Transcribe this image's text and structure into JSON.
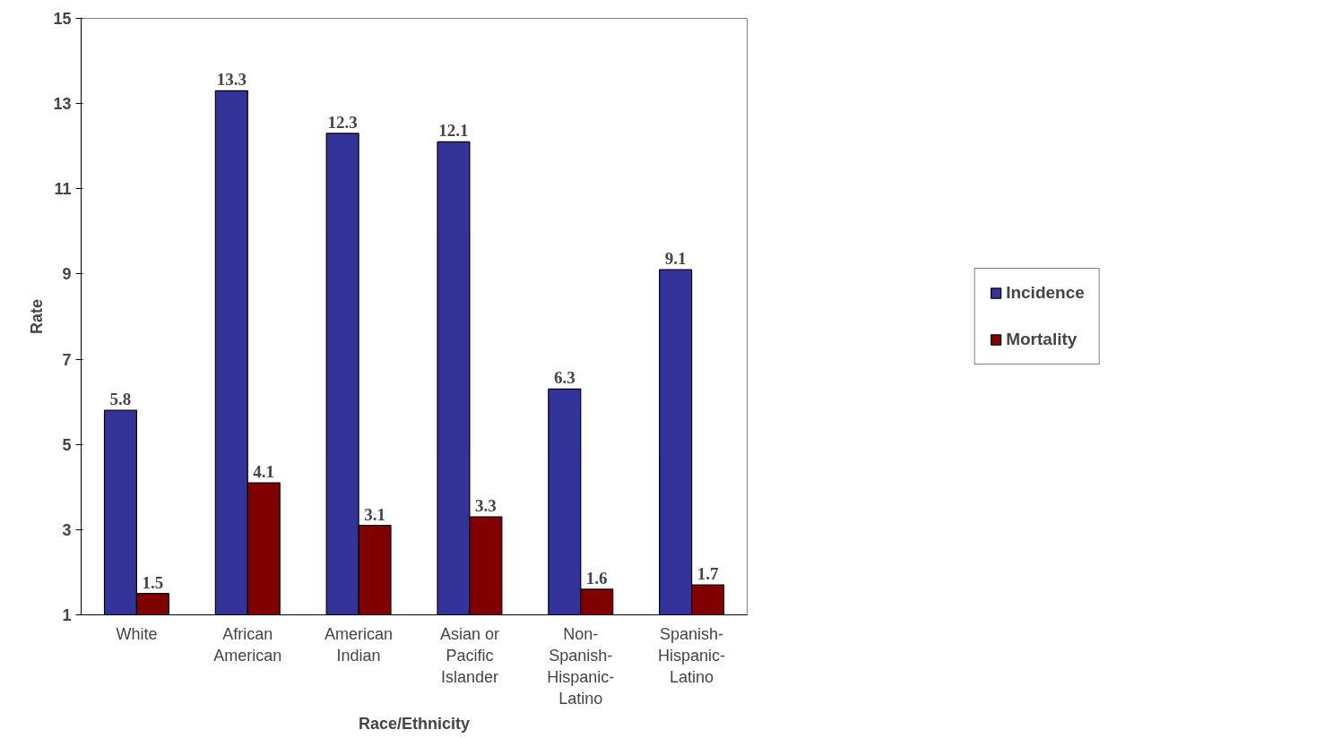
{
  "chart_data": {
    "type": "bar",
    "xlabel": "Race/Ethnicity",
    "ylabel": "Rate",
    "categories": [
      "White",
      "African American",
      "American Indian",
      "Asian or Pacific Islander",
      "Non-Spanish-Hispanic-Latino",
      "Spanish-Hispanic-Latino"
    ],
    "series": [
      {
        "name": "Incidence",
        "color": "#333399",
        "values": [
          5.8,
          13.3,
          12.3,
          12.1,
          6.3,
          9.1
        ]
      },
      {
        "name": "Mortality",
        "color": "#800000",
        "values": [
          1.5,
          4.1,
          3.1,
          3.3,
          1.6,
          1.7
        ]
      }
    ],
    "ylim": [
      1,
      15
    ],
    "yticks": [
      1,
      3,
      5,
      7,
      9,
      11,
      13,
      15
    ],
    "data_labels": true,
    "grid": false,
    "legend": "right"
  }
}
